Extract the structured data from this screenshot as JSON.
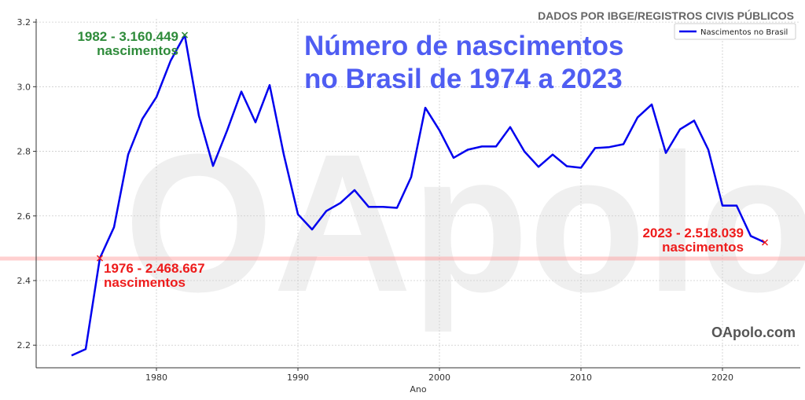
{
  "source_text": "DADOS POR IBGE/REGISTROS CIVIS PÚBLICOS",
  "title_line1": "Número de nascimentos",
  "title_line2": "no Brasil de 1974 a 2023",
  "watermark": "OApolo",
  "brand": "OApolo.com",
  "annotations": {
    "peak_line1": "1982 - 3.160.449",
    "peak_line2": "nascimentos",
    "low_line1": "1976 - 2.468.667",
    "low_line2": "nascimentos",
    "last_line1": "2023 - 2.518.039",
    "last_line2": "nascimentos"
  },
  "colors": {
    "line": "#0000ee",
    "peak_marker": "#2e8b3a",
    "red_marker": "#ee1c1c",
    "reference_line": "#ff9999"
  },
  "chart_data": {
    "type": "line",
    "xlabel": "Ano",
    "ylabel": "",
    "xlim": [
      1971.5,
      2025.5
    ],
    "ylim": [
      2.13,
      3.21
    ],
    "xticks": [
      1980,
      1990,
      2000,
      2010,
      2020
    ],
    "yticks": [
      2.2,
      2.4,
      2.6,
      2.8,
      3.0,
      3.2
    ],
    "grid": true,
    "legend_position": "top-right",
    "reference_line_y": 2.468,
    "series": [
      {
        "name": "Nascimentos no Brasil",
        "x": [
          1974,
          1975,
          1976,
          1977,
          1978,
          1979,
          1980,
          1981,
          1982,
          1983,
          1984,
          1985,
          1986,
          1987,
          1988,
          1989,
          1990,
          1991,
          1992,
          1993,
          1994,
          1995,
          1996,
          1997,
          1998,
          1999,
          2000,
          2001,
          2002,
          2003,
          2004,
          2005,
          2006,
          2007,
          2008,
          2009,
          2010,
          2011,
          2012,
          2013,
          2014,
          2015,
          2016,
          2017,
          2018,
          2019,
          2020,
          2021,
          2022,
          2023
        ],
        "y": [
          2.168,
          2.188,
          2.469,
          2.565,
          2.79,
          2.9,
          2.968,
          3.08,
          3.16,
          2.91,
          2.755,
          2.865,
          2.985,
          2.89,
          3.005,
          2.79,
          2.605,
          2.558,
          2.615,
          2.64,
          2.68,
          2.628,
          2.628,
          2.625,
          2.72,
          2.935,
          2.865,
          2.78,
          2.805,
          2.815,
          2.815,
          2.875,
          2.8,
          2.752,
          2.79,
          2.754,
          2.749,
          2.81,
          2.813,
          2.822,
          2.905,
          2.945,
          2.795,
          2.868,
          2.895,
          2.805,
          2.632,
          2.632,
          2.538,
          2.518
        ]
      }
    ]
  }
}
